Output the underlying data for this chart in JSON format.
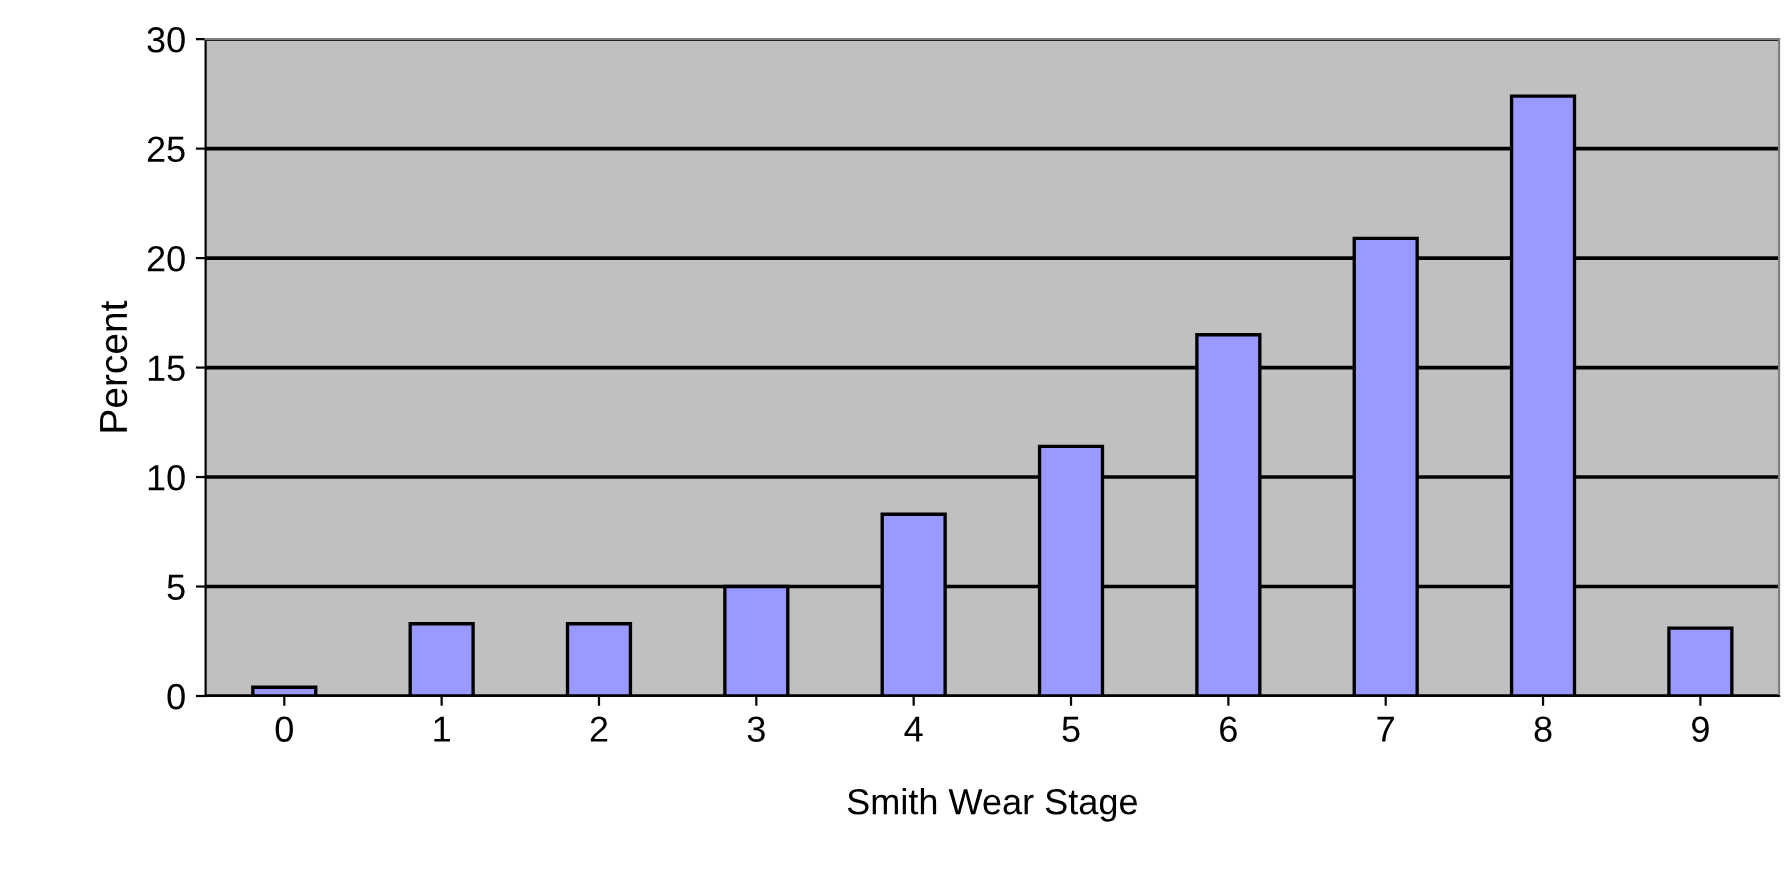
{
  "chart_data": {
    "type": "bar",
    "xlabel": "Smith Wear Stage",
    "ylabel": "Percent",
    "categories": [
      "0",
      "1",
      "2",
      "3",
      "4",
      "5",
      "6",
      "7",
      "8",
      "9"
    ],
    "values": [
      0.4,
      3.3,
      3.3,
      5.0,
      8.3,
      11.4,
      16.5,
      20.9,
      27.4,
      3.1
    ],
    "color": "#9999ff",
    "ylim": [
      0,
      30
    ],
    "yticks": [
      0,
      5,
      10,
      15,
      20,
      25,
      30
    ],
    "grid": "y"
  }
}
